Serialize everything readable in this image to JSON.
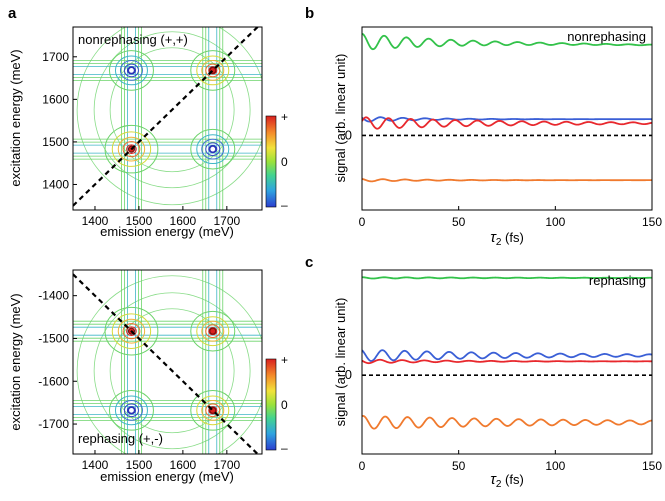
{
  "panel_labels": {
    "a": "a",
    "b": "b",
    "c": "c"
  },
  "colors": {
    "green": "#33c24a",
    "blue": "#3a5fd6",
    "red": "#e8282d",
    "orange": "#f07a2e",
    "contour_green": "#6cd36a",
    "contour_blue": "#3d6fd4",
    "contour_cyan": "#3fb6c6",
    "contour_yellow": "#d7d93a"
  },
  "colorbar": {
    "top": "+",
    "mid": "0",
    "bottom": "–"
  },
  "chart_data": [
    {
      "id": "nonrephasing_2d",
      "type": "heatmap",
      "title": "nonrephasing (+,+)",
      "xlabel": "emission energy (meV)",
      "ylabel": "excitation energy (meV)",
      "xlim": [
        1350,
        1780
      ],
      "ylim": [
        1340,
        1770
      ],
      "xticks": [
        "1400",
        "1500",
        "1600",
        "1700"
      ],
      "yticks": [
        "1400",
        "1500",
        "1600",
        "1700"
      ],
      "xtick_values": [
        1400,
        1500,
        1600,
        1700
      ],
      "ytick_values": [
        1400,
        1500,
        1600,
        1700
      ],
      "diagonal": "y = x",
      "peaks": [
        {
          "x": 1483,
          "y": 1483,
          "sign": "+"
        },
        {
          "x": 1668,
          "y": 1483,
          "sign": "-"
        },
        {
          "x": 1483,
          "y": 1668,
          "sign": "-"
        },
        {
          "x": 1668,
          "y": 1668,
          "sign": "+"
        }
      ]
    },
    {
      "id": "rephasing_2d",
      "type": "heatmap",
      "title": "rephasing (+,-)",
      "xlabel": "emission energy (meV)",
      "ylabel": "excitation energy (meV)",
      "xlim": [
        1350,
        1780
      ],
      "ylim": [
        -1770,
        -1340
      ],
      "xticks": [
        "1400",
        "1500",
        "1600",
        "1700"
      ],
      "yticks": [
        "-1400",
        "-1500",
        "-1600",
        "-1700"
      ],
      "xtick_values": [
        1400,
        1500,
        1600,
        1700
      ],
      "ytick_values": [
        -1400,
        -1500,
        -1600,
        -1700
      ],
      "diagonal": "y = -x",
      "peaks": [
        {
          "x": 1483,
          "y": -1483,
          "sign": "+"
        },
        {
          "x": 1668,
          "y": -1483,
          "sign": "+"
        },
        {
          "x": 1483,
          "y": -1668,
          "sign": "-"
        },
        {
          "x": 1668,
          "y": -1668,
          "sign": "+"
        }
      ]
    },
    {
      "id": "nonrephasing_time",
      "type": "line",
      "title": "nonrephasing",
      "xlabel": "τ",
      "xlabel_sub": "2",
      "xlabel_unit": " (fs)",
      "ylabel": "signal (arb. linear unit)",
      "zero_label": "0",
      "xlim": [
        0,
        150
      ],
      "ylim": [
        -1.1,
        1.6
      ],
      "xticks": [
        "0",
        "50",
        "100",
        "150"
      ],
      "xtick_values": [
        0,
        50,
        100,
        150
      ],
      "series": [
        {
          "name": "green",
          "color": "#33c24a",
          "base": 1.38,
          "amp": 0.12,
          "period": 11.5,
          "decay": 16,
          "phase": 0,
          "slope": -0.0003
        },
        {
          "name": "blue",
          "color": "#3a5fd6",
          "base": 0.24,
          "amp": 0.04,
          "period": 11.5,
          "decay": 10,
          "phase": 1.0,
          "slope": 0
        },
        {
          "name": "red",
          "color": "#e8282d",
          "base": 0.18,
          "amp": 0.09,
          "period": 11.5,
          "decay": 25,
          "phase": -1.2,
          "slope": 0
        },
        {
          "name": "orange",
          "color": "#f07a2e",
          "base": -0.66,
          "amp": 0.02,
          "period": 11.5,
          "decay": 12,
          "phase": 0.4,
          "slope": 0
        }
      ]
    },
    {
      "id": "rephasing_time",
      "type": "line",
      "title": "rephasing",
      "xlabel": "τ",
      "xlabel_sub": "2",
      "xlabel_unit": " (fs)",
      "ylabel": "signal (arb. linear unit)",
      "zero_label": "0",
      "xlim": [
        0,
        150
      ],
      "ylim": [
        -1.2,
        1.6
      ],
      "xticks": [
        "0",
        "50",
        "100",
        "150"
      ],
      "xtick_values": [
        0,
        50,
        100,
        150
      ],
      "series": [
        {
          "name": "green",
          "color": "#33c24a",
          "base": 1.48,
          "amp": 0.01,
          "period": 11.5,
          "decay": 30,
          "phase": 0,
          "slope": 0
        },
        {
          "name": "blue",
          "color": "#3a5fd6",
          "base": 0.3,
          "amp": 0.09,
          "period": 11.5,
          "decay": 30,
          "phase": 0.5,
          "slope": 0
        },
        {
          "name": "red",
          "color": "#e8282d",
          "base": 0.21,
          "amp": 0.03,
          "period": 11.5,
          "decay": 15,
          "phase": 1.2,
          "slope": 0
        },
        {
          "name": "orange",
          "color": "#f07a2e",
          "base": -0.72,
          "amp": 0.1,
          "period": 11.5,
          "decay": 40,
          "phase": -0.3,
          "slope": 0
        }
      ]
    }
  ]
}
